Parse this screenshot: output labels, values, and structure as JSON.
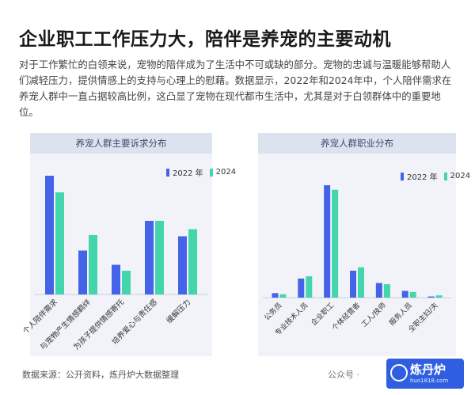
{
  "page": {
    "title": "企业职工工作压力大，陪伴是养宠的主要动机",
    "body": "对于工作繁忙的白领来说，宠物的陪伴成为了生活中不可或缺的部分。宠物的忠诚与温暖能够帮助人们减轻压力，提供情感上的支持与心理上的慰藉。数据显示，2022年和2024年中，个人陪伴需求在养宠人群中一直占据较高比例，这凸显了宠物在现代都市生活中，尤其是对于白领群体中的重要地位。",
    "source": "数据来源：公开资料，炼丹炉大数据整理",
    "wechat_label": "公众号 ·",
    "logo_text": "炼丹炉",
    "logo_sub": "huo1818.com"
  },
  "colors": {
    "series_2022": "#4563e8",
    "series_2024": "#43d6ad",
    "panel_bg": "#f1f3f8",
    "panel_header": "#dde2ef"
  },
  "chart_data": [
    {
      "type": "bar",
      "title": "养宠人群主要诉求分布",
      "categories": [
        "个人陪伴需求",
        "与宠物产生情感羁绊",
        "为孩子提供情感寄托",
        "培养爱心与责任感",
        "缓解压力"
      ],
      "series": [
        {
          "name": "2022 年",
          "values": [
            100,
            37,
            25,
            62,
            49
          ]
        },
        {
          "name": "2024",
          "values": [
            86,
            50,
            20,
            62,
            55
          ]
        }
      ],
      "legend_position": "top-right",
      "grid": false
    },
    {
      "type": "bar",
      "title": "养宠人群职业分布",
      "categories": [
        "公务员",
        "专业技术人员",
        "企业职工",
        "个体经营者",
        "工人/技师",
        "服务人员",
        "全职主妇/夫"
      ],
      "series": [
        {
          "name": "2022 年",
          "values": [
            4,
            17,
            100,
            24,
            13,
            6,
            1
          ]
        },
        {
          "name": "2024",
          "values": [
            3,
            19,
            96,
            27,
            12,
            5,
            2
          ]
        }
      ],
      "legend_position": "top-right",
      "grid": false
    }
  ]
}
